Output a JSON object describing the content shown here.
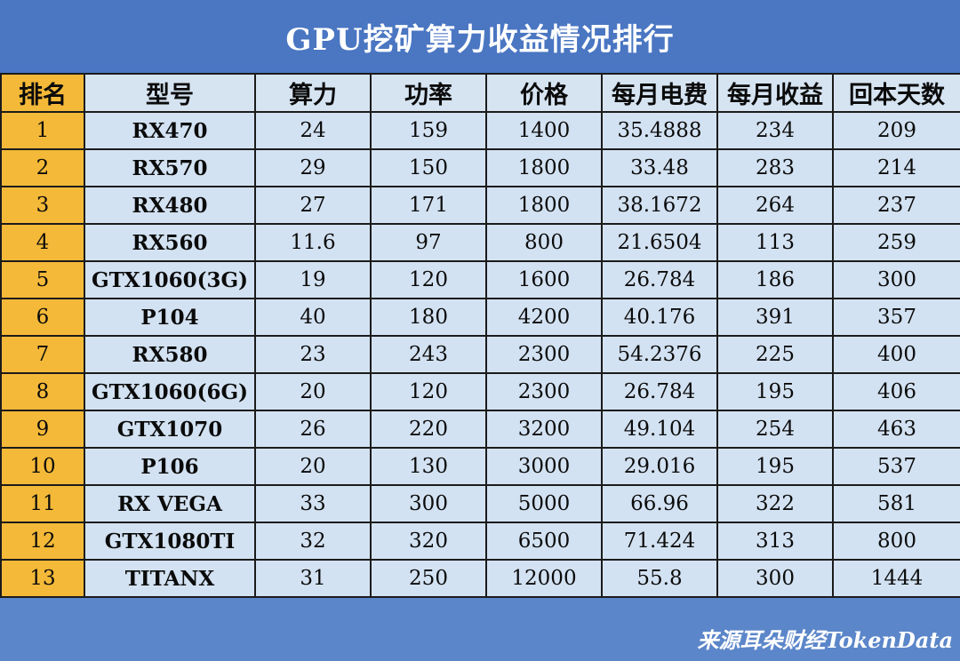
{
  "title": "GPU挖矿算力收益情况排行",
  "table": {
    "headers": [
      "排名",
      "型号",
      "算力",
      "功率",
      "价格",
      "每月电费",
      "每月收益",
      "回本天数"
    ],
    "rows": [
      [
        "1",
        "RX470",
        "24",
        "159",
        "1400",
        "35.4888",
        "234",
        "209"
      ],
      [
        "2",
        "RX570",
        "29",
        "150",
        "1800",
        "33.48",
        "283",
        "214"
      ],
      [
        "3",
        "RX480",
        "27",
        "171",
        "1800",
        "38.1672",
        "264",
        "237"
      ],
      [
        "4",
        "RX560",
        "11.6",
        "97",
        "800",
        "21.6504",
        "113",
        "259"
      ],
      [
        "5",
        "GTX1060(3G)",
        "19",
        "120",
        "1600",
        "26.784",
        "186",
        "300"
      ],
      [
        "6",
        "P104",
        "40",
        "180",
        "4200",
        "40.176",
        "391",
        "357"
      ],
      [
        "7",
        "RX580",
        "23",
        "243",
        "2300",
        "54.2376",
        "225",
        "400"
      ],
      [
        "8",
        "GTX1060(6G)",
        "20",
        "120",
        "2300",
        "26.784",
        "195",
        "406"
      ],
      [
        "9",
        "GTX1070",
        "26",
        "220",
        "3200",
        "49.104",
        "254",
        "463"
      ],
      [
        "10",
        "P106",
        "20",
        "130",
        "3000",
        "29.016",
        "195",
        "537"
      ],
      [
        "11",
        "RX VEGA",
        "33",
        "300",
        "5000",
        "66.96",
        "322",
        "581"
      ],
      [
        "12",
        "GTX1080TI",
        "32",
        "320",
        "6500",
        "71.424",
        "313",
        "800"
      ],
      [
        "13",
        "TITANX",
        "31",
        "250",
        "12000",
        "55.8",
        "300",
        "1444"
      ]
    ]
  },
  "source": "来源耳朵财经TokenData",
  "colors": {
    "header_background": "#4a76c2",
    "table_background": "#d3e2f2",
    "rank_column": "#f4b938",
    "border": "#1b1b1b"
  }
}
